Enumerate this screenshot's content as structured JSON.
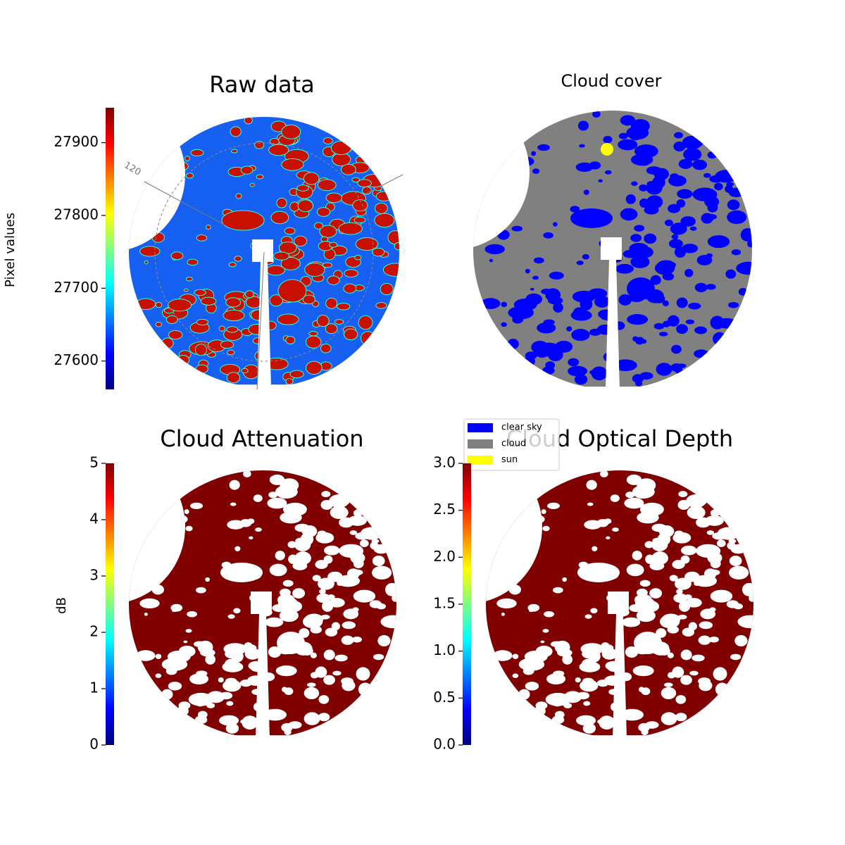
{
  "chart_data": [
    {
      "type": "image",
      "title": "Raw data",
      "colorbar_label": "Pixel values",
      "ylim": [
        27561,
        27948
      ],
      "yticks": [
        27600,
        27700,
        27800,
        27900
      ],
      "colormap": [
        "#00007f",
        "#0000ff",
        "#0080ff",
        "#00ffff",
        "#80ff80",
        "#ffff00",
        "#ff8000",
        "#ff0000",
        "#7f0000"
      ],
      "annotations": [
        "120"
      ]
    },
    {
      "type": "image",
      "title": "Cloud cover",
      "legend": {
        "loc": "lower left",
        "entries": [
          {
            "name": "clear sky",
            "color": "#0000ff"
          },
          {
            "name": "cloud",
            "color": "#808080"
          },
          {
            "name": "sun",
            "color": "#ffff00"
          }
        ]
      }
    },
    {
      "type": "image",
      "title": "Cloud Attenuation",
      "colorbar_label": "dB",
      "ylim": [
        0,
        5
      ],
      "yticks": [
        0,
        1,
        2,
        3,
        4,
        5
      ],
      "colormap": [
        "#00007f",
        "#0000ff",
        "#0080ff",
        "#00ffff",
        "#80ff80",
        "#ffff00",
        "#ff8000",
        "#ff0000",
        "#7f0000"
      ]
    },
    {
      "type": "image",
      "title": "Cloud Optical Depth",
      "ylim": [
        0,
        3
      ],
      "yticks": [
        {
          "value": 0,
          "label": "0.0"
        },
        0.5,
        {
          "value": 1,
          "label": "1.0"
        },
        1.5,
        {
          "value": 2,
          "label": "2.0"
        },
        2.5,
        {
          "value": 3,
          "label": "3.0"
        }
      ],
      "colormap": [
        "#00007f",
        "#0000ff",
        "#0080ff",
        "#00ffff",
        "#80ff80",
        "#ffff00",
        "#ff8000",
        "#ff0000",
        "#7f0000"
      ]
    }
  ]
}
